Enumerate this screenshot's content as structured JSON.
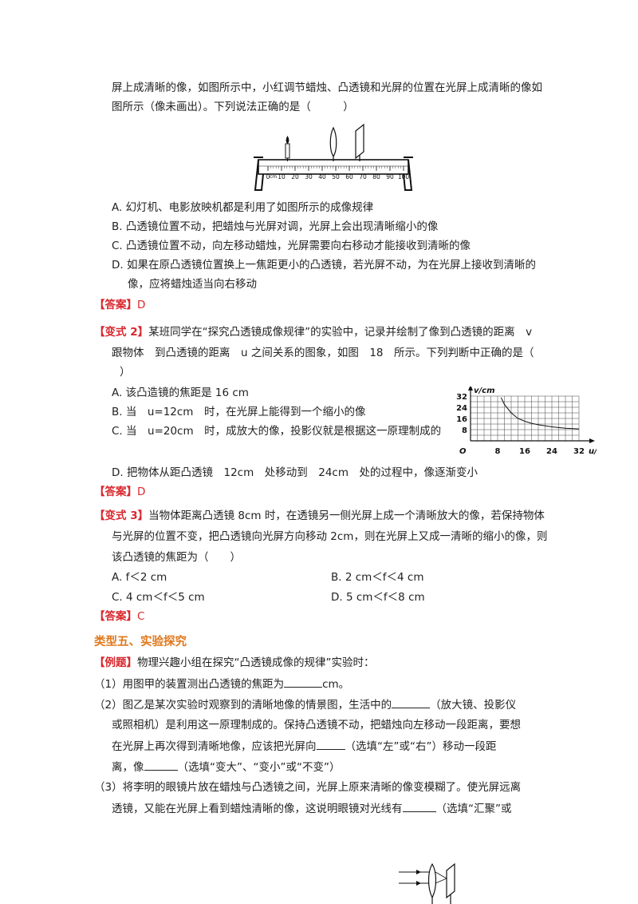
{
  "q1": {
    "stem_line1": "屏上成清晰的像，如图所示中，小红调节蜡烛、凸透镜和光屏的位置在光屏上成清晰的像如",
    "stem_line2": "图所示（像未画出）。下列说法正确的是（　　　）",
    "bench_ticks": [
      "0",
      "10",
      "20",
      "30",
      "40",
      "50",
      "60",
      "70",
      "80",
      "90",
      "100"
    ],
    "bench_unit": "cm",
    "options": [
      "A. 幻灯机、电影放映机都是利用了如图所示的成像规律",
      "B. 凸透镜位置不动，把蜡烛与光屏对调，光屏上会出现清晰缩小的像",
      "C. 凸透镜位置不动，向左移动蜡烛，光屏需要向右移动才能接收到清晰的像",
      "D. 如果在原凸透镜位置换上一焦距更小的凸透镜，若光屏不动，为在光屏上接收到清晰的",
      "像，应将蜡烛适当向右移动"
    ],
    "answer_label": "【答案】",
    "answer": "D"
  },
  "q2": {
    "tag": "【变式 2】",
    "stem_line1": "某班同学在“探究凸透镜成像规律”的实验中，记录并绘制了像到凸透镜的距离　v",
    "stem_line2": "跟物体　到凸透镜的距离　u 之间关系的图象，如图　18　所示。下列判断中正确的是（",
    "stem_line3": "）",
    "options": [
      "A. 该凸造镜的焦距是 16 cm",
      "B. 当　u=12cm　时，在光屏上能得到一个缩小的像",
      "C. 当　u=20cm　时，成放大的像，投影仪就是根据这一原理制成的",
      "D. 把物体从距凸透镜　12cm　处移动到　24cm　处的过程中，像逐渐变小"
    ],
    "answer_label": "【答案】",
    "answer": "D"
  },
  "chart_data": {
    "type": "line",
    "xlabel": "u/cm",
    "ylabel": "v/cm",
    "origin_label": "O",
    "x_ticks": [
      "8",
      "16",
      "24",
      "32"
    ],
    "y_ticks": [
      "32",
      "24",
      "16",
      "8"
    ],
    "xlim": [
      0,
      32
    ],
    "ylim": [
      0,
      32
    ],
    "grid": true,
    "series": [
      {
        "x": [
          9,
          10,
          12,
          14,
          16,
          18,
          20,
          24,
          28,
          32
        ],
        "y": [
          31,
          26,
          20,
          16,
          14,
          12.5,
          11.5,
          10,
          9,
          8.5
        ]
      }
    ]
  },
  "q3": {
    "tag": "【变式 3】",
    "stem_line1": "当物体距离凸透镜 8cm 时，在透镜另一侧光屏上成一个清晰放大的像，若保持物体",
    "stem_line2": "与光屏的位置不变，把凸透镜向光屏方向移动 2cm，则在光屏上又成一清晰的缩小的像，则",
    "stem_line3": "该凸透镜的焦距为（　　）",
    "option_a": "A. f＜2 cm",
    "option_b": "B. 2 cm＜f＜4 cm",
    "option_c": "C. 4 cm＜f＜5 cm",
    "option_d": "D. 5 cm＜f＜8 cm",
    "answer_label": "【答案】",
    "answer": "C"
  },
  "section5": {
    "heading": "类型五、实验探究",
    "tag": "【例题】",
    "intro": "物理兴趣小组在探究“凸透镜成像的规律”实验时：",
    "p1_a": "（1）用图甲的装置测出凸透镜的焦距为",
    "p1_b": "cm。",
    "p2_l1_a": "（2）图乙是某次实验时观察到的清晰地像的情景图，生活中的",
    "p2_l1_b": "（放大镜、投影仪",
    "p2_l2": "或照相机）是利用这一原理制成的。保持凸透镜不动，把蜡烛向左移动一段距离，要想",
    "p2_l3_a": "在光屏上再次得到清晰地像，应该把光屏向",
    "p2_l3_b": "（选填“左”或“右”）移动一段距",
    "p2_l4_a": "离，像",
    "p2_l4_b": "（选填“变大”、“变小”或“不变”）",
    "p3_l1": "（3）将李明的眼镜片放在蜡烛与凸透镜之间，光屏上原来清晰的像变模糊了。使光屏远离",
    "p3_l2_a": "透镜，又能在光屏上看到蜡烛清晰的像，这说明眼镜对光线有",
    "p3_l2_b": "（选填“汇聚”或"
  },
  "colors": {
    "accent_red": "#d8272d",
    "heading_orange": "#e0781c",
    "text": "#222222"
  }
}
